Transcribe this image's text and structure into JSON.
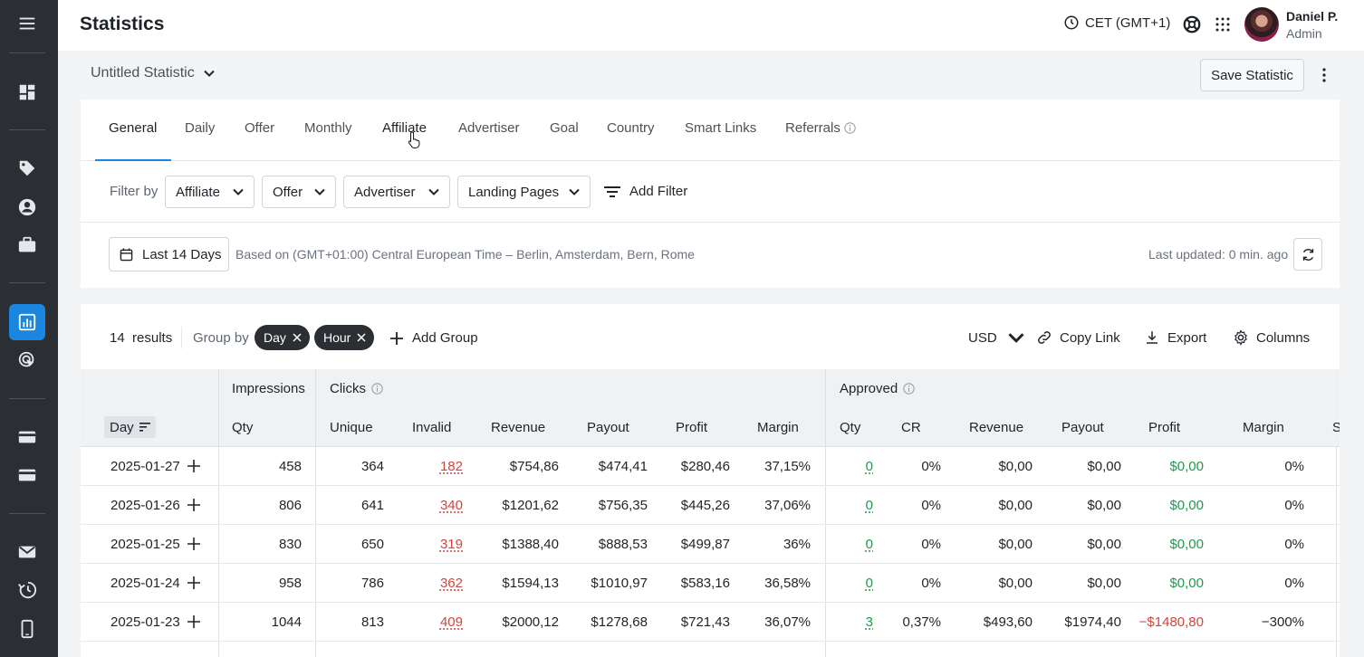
{
  "header": {
    "title": "Statistics",
    "timezone": "CET (GMT+1)",
    "user_name": "Daniel P.",
    "user_role": "Admin"
  },
  "statistic": {
    "name": "Untitled Statistic",
    "save_label": "Save Statistic"
  },
  "tabs": [
    {
      "label": "General",
      "active": true
    },
    {
      "label": "Daily"
    },
    {
      "label": "Offer"
    },
    {
      "label": "Monthly"
    },
    {
      "label": "Affiliate"
    },
    {
      "label": "Advertiser"
    },
    {
      "label": "Goal"
    },
    {
      "label": "Country"
    },
    {
      "label": "Smart Links"
    },
    {
      "label": "Referrals"
    }
  ],
  "filters": {
    "label": "Filter by",
    "items": [
      "Affiliate",
      "Offer",
      "Advertiser",
      "Landing Pages"
    ],
    "add_label": "Add Filter"
  },
  "date": {
    "range_label": "Last 14 Days",
    "note": "Based on (GMT+01:00) Central European Time – Berlin, Amsterdam, Bern, Rome",
    "last_updated": "Last updated: 0 min. ago"
  },
  "results": {
    "count": "14",
    "count_label": "results",
    "group_by_label": "Group by",
    "groups": [
      "Day",
      "Hour"
    ],
    "add_group_label": "Add Group",
    "currency": "USD",
    "copy_link_label": "Copy Link",
    "export_label": "Export",
    "columns_label": "Columns"
  },
  "table": {
    "group_headers": {
      "impressions": "Impressions",
      "clicks": "Clicks",
      "approved": "Approved"
    },
    "columns": {
      "day": "Day",
      "imp_qty": "Qty",
      "unique": "Unique",
      "invalid": "Invalid",
      "revenue": "Revenue",
      "payout": "Payout",
      "profit": "Profit",
      "margin": "Margin",
      "appr_qty": "Qty",
      "cr": "CR",
      "appr_revenue": "Revenue",
      "appr_payout": "Payout",
      "appr_profit": "Profit",
      "appr_margin": "Margin",
      "cut": "S"
    },
    "rows": [
      {
        "day": "2025-01-27",
        "imp": "458",
        "unique": "364",
        "invalid": "182",
        "revenue": "$754,86",
        "payout": "$474,41",
        "profit": "$280,46",
        "margin": "37,15%",
        "aqty": "0",
        "cr": "0%",
        "arev": "$0,00",
        "apay": "$0,00",
        "aprof": "$0,00",
        "amargin": "0%"
      },
      {
        "day": "2025-01-26",
        "imp": "806",
        "unique": "641",
        "invalid": "340",
        "revenue": "$1201,62",
        "payout": "$756,35",
        "profit": "$445,26",
        "margin": "37,06%",
        "aqty": "0",
        "cr": "0%",
        "arev": "$0,00",
        "apay": "$0,00",
        "aprof": "$0,00",
        "amargin": "0%"
      },
      {
        "day": "2025-01-25",
        "imp": "830",
        "unique": "650",
        "invalid": "319",
        "revenue": "$1388,40",
        "payout": "$888,53",
        "profit": "$499,87",
        "margin": "36%",
        "aqty": "0",
        "cr": "0%",
        "arev": "$0,00",
        "apay": "$0,00",
        "aprof": "$0,00",
        "amargin": "0%"
      },
      {
        "day": "2025-01-24",
        "imp": "958",
        "unique": "786",
        "invalid": "362",
        "revenue": "$1594,13",
        "payout": "$1010,97",
        "profit": "$583,16",
        "margin": "36,58%",
        "aqty": "0",
        "cr": "0%",
        "arev": "$0,00",
        "apay": "$0,00",
        "aprof": "$0,00",
        "amargin": "0%"
      },
      {
        "day": "2025-01-23",
        "imp": "1044",
        "unique": "813",
        "invalid": "409",
        "revenue": "$2000,12",
        "payout": "$1278,68",
        "profit": "$721,43",
        "margin": "36,07%",
        "aqty": "3",
        "cr": "0,37%",
        "arev": "$493,60",
        "apay": "$1974,40",
        "aprof": "−$1480,80",
        "amargin": "−300%"
      }
    ]
  },
  "colors": {
    "accent": "#1a86e0",
    "sidebar": "#2b2f33",
    "invalid_red": "#d2453b",
    "profit_green": "#1f9a4a"
  }
}
